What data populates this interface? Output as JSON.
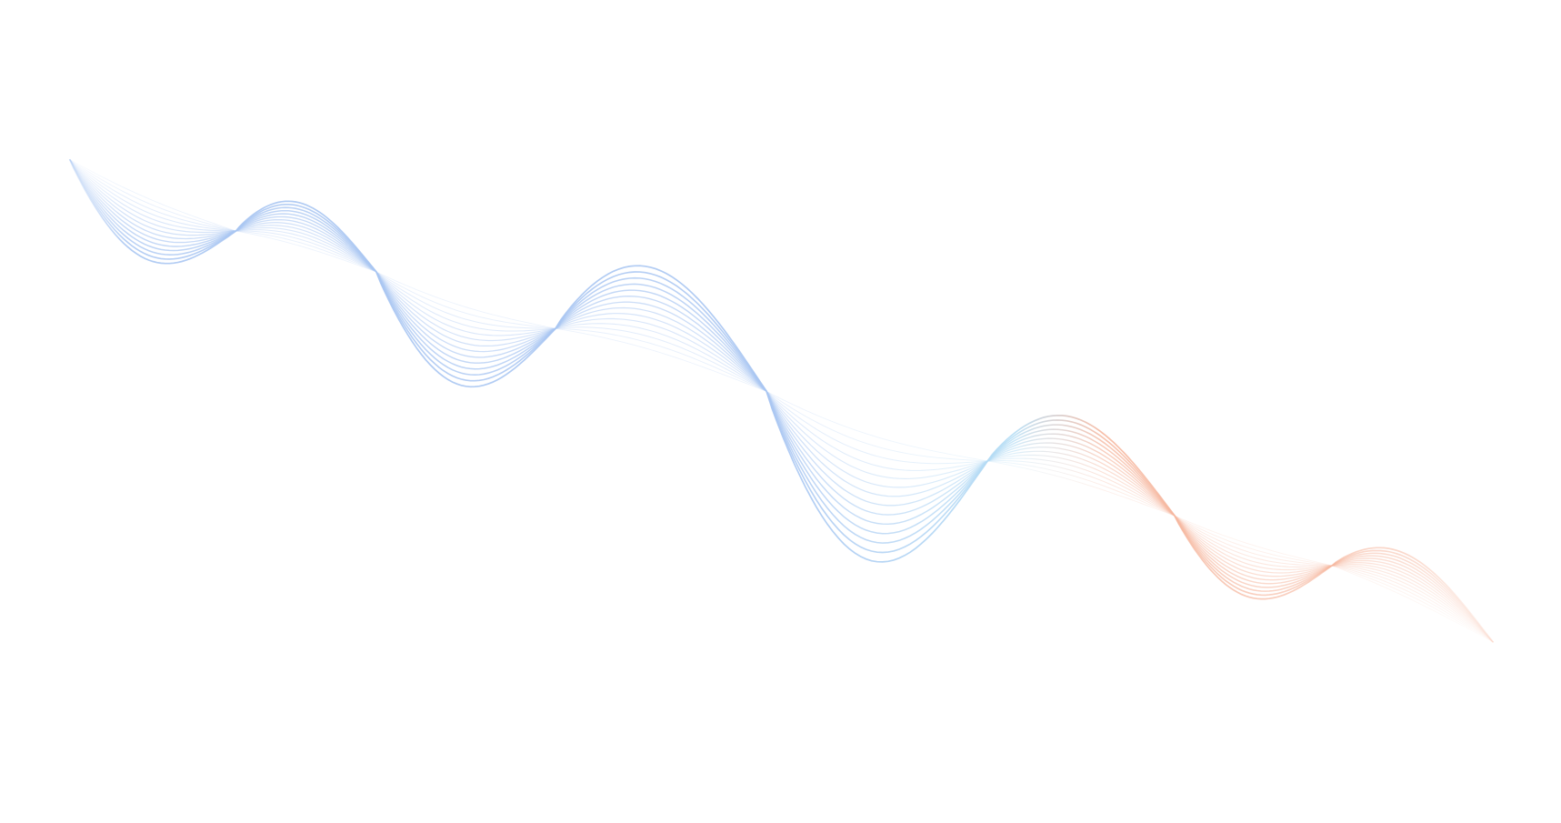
{
  "background": "#ffffff",
  "wave": {
    "colors": {
      "start": "#a9c6f2",
      "middle": "#b6def5",
      "end": "#f6b8a0"
    }
  }
}
